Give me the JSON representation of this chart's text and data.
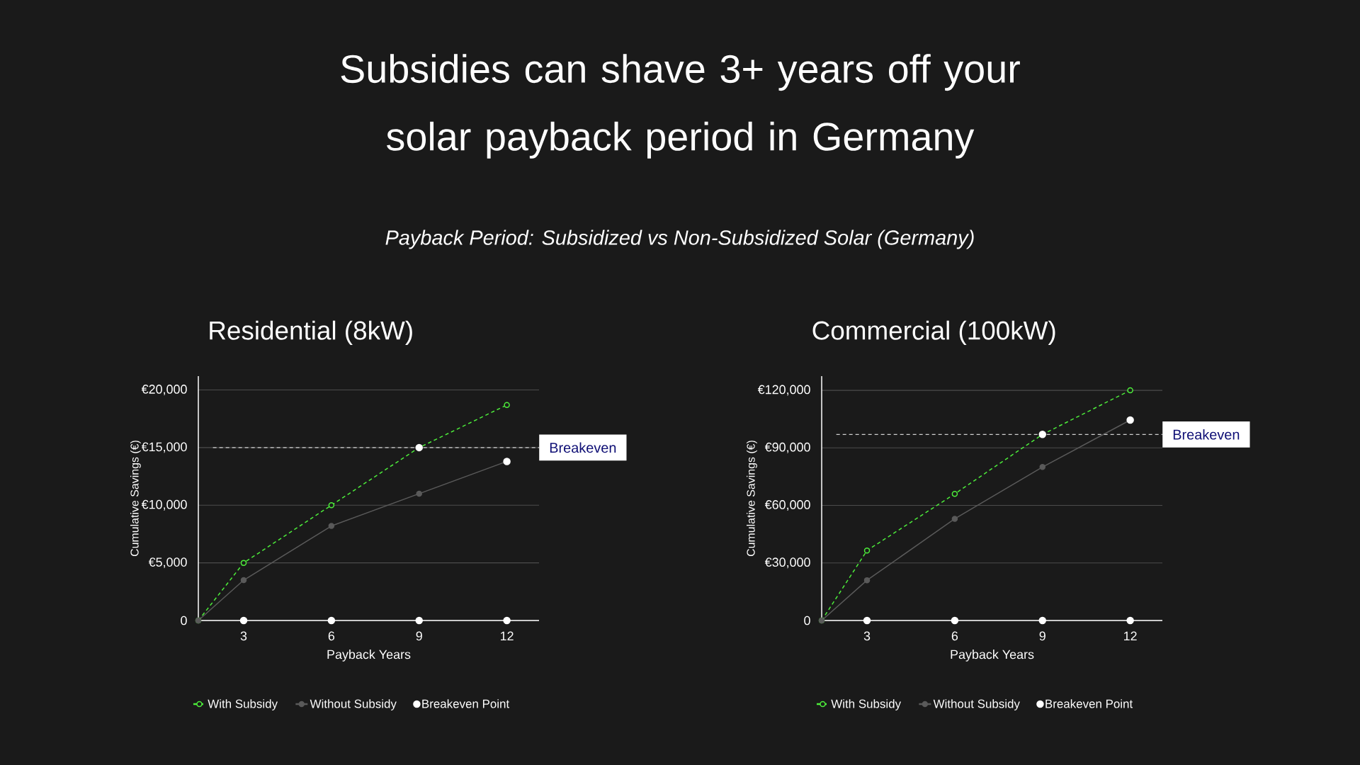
{
  "chart_data": [
    {
      "type": "line",
      "title": "Residential (8kW)",
      "annotations": [
        "Subsidies can shave 3+ years off your solar payback period in Germany",
        "Payback Period: Subsidized vs Non-Subsidized Solar (Germany)"
      ],
      "xlabel": "Payback Years",
      "ylabel": "Cumulative Savings (€)",
      "xlim": [
        1.45,
        13.1
      ],
      "xticks": [
        3,
        6,
        9,
        12
      ],
      "ylim": [
        0,
        21200
      ],
      "yticks": [
        0,
        {
          "value": 5000,
          "label": "€5,000"
        },
        {
          "value": 10000,
          "label": "€10,000"
        },
        {
          "value": 15000,
          "label": "€15,000"
        },
        {
          "value": 20000,
          "label": "€20,000"
        }
      ],
      "grid": "y",
      "legend": "bottom",
      "series": [
        {
          "name": "With Subsidy",
          "color": "#4ded3b",
          "line_style": "dashed",
          "marker": "circle",
          "x": [
            1.45,
            3,
            6,
            9,
            12
          ],
          "values": [
            0,
            5000,
            10000,
            15000,
            18700
          ]
        },
        {
          "name": "Without Subsidy",
          "color": "#5a5a5a",
          "line_style": "solid",
          "marker": "circle",
          "x": [
            1.45,
            3,
            6,
            9,
            12
          ],
          "values": [
            0,
            3500,
            8200,
            11000,
            13800
          ]
        },
        {
          "name": "Breakeven Point",
          "type": "scatter",
          "color": "#ffffff",
          "marker": "circle",
          "x": [
            3,
            6,
            9,
            12,
            9,
            12
          ],
          "values": [
            0,
            0,
            0,
            0,
            15000,
            13800
          ]
        }
      ],
      "ref_lines": [
        {
          "axis": "y",
          "value": 15000,
          "label": "Breakeven",
          "color": "#d0d0d0",
          "line_style": "dashed"
        }
      ]
    },
    {
      "type": "line",
      "title": "Commercial (100kW)",
      "xlabel": "Payback Years",
      "ylabel": "Cumulative Savings (€)",
      "xlim": [
        1.45,
        13.1
      ],
      "xticks": [
        3,
        6,
        9,
        12
      ],
      "ylim": [
        0,
        127400
      ],
      "yticks": [
        0,
        {
          "value": 30000,
          "label": "€30,000"
        },
        {
          "value": 60000,
          "label": "€60,000"
        },
        {
          "value": 90000,
          "label": "€90,000"
        },
        {
          "value": 120000,
          "label": "€120,000"
        }
      ],
      "grid": "y",
      "legend": "bottom",
      "series": [
        {
          "name": "With Subsidy",
          "color": "#4ded3b",
          "line_style": "dashed",
          "marker": "circle",
          "x": [
            1.45,
            3,
            6,
            9,
            12
          ],
          "values": [
            0,
            36500,
            66000,
            97000,
            120000
          ]
        },
        {
          "name": "Without Subsidy",
          "color": "#5a5a5a",
          "line_style": "solid",
          "marker": "circle",
          "x": [
            1.45,
            3,
            6,
            9,
            12
          ],
          "values": [
            0,
            21000,
            53000,
            80000,
            104500
          ]
        },
        {
          "name": "Breakeven Point",
          "type": "scatter",
          "color": "#ffffff",
          "marker": "circle",
          "x": [
            3,
            6,
            9,
            12,
            9,
            12
          ],
          "values": [
            0,
            0,
            0,
            0,
            97000,
            104500
          ]
        }
      ],
      "ref_lines": [
        {
          "axis": "y",
          "value": 97000,
          "label": "Breakeven",
          "color": "#d0d0d0",
          "line_style": "dashed"
        }
      ]
    }
  ]
}
